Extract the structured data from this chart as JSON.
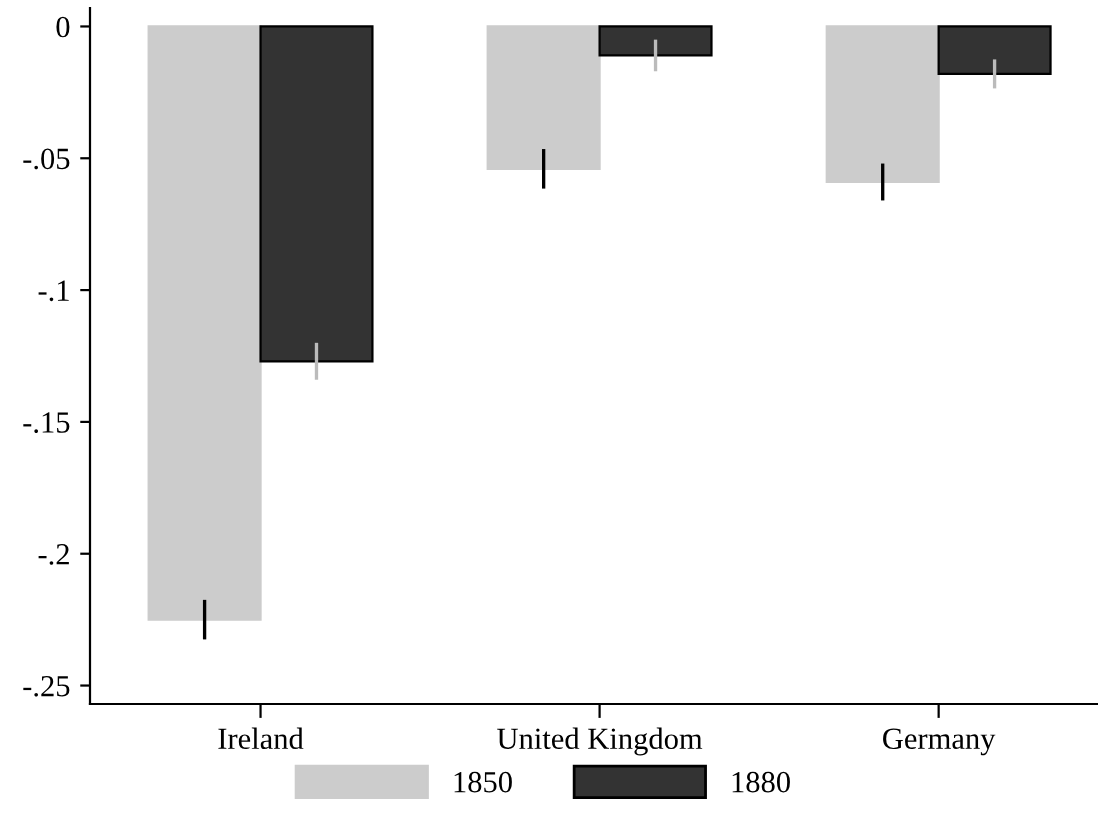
{
  "chart_data": {
    "type": "bar",
    "categories": [
      "Ireland",
      "United Kingdom",
      "Germany"
    ],
    "series": [
      {
        "name": "1850",
        "color": "#cccccc",
        "values": [
          -0.225,
          -0.054,
          -0.059
        ],
        "errors": [
          0.0075,
          0.0075,
          0.007
        ]
      },
      {
        "name": "1880",
        "color": "#333333",
        "values": [
          -0.127,
          -0.011,
          -0.018
        ],
        "errors": [
          0.007,
          0.006,
          0.0055
        ]
      }
    ],
    "ylim": [
      -0.257,
      0.007
    ],
    "yticks": [
      {
        "value": 0,
        "label": "0"
      },
      {
        "value": -0.05,
        "label": "-.05"
      },
      {
        "value": -0.1,
        "label": "-.1"
      },
      {
        "value": -0.15,
        "label": "-.15"
      },
      {
        "value": -0.2,
        "label": "-.2"
      },
      {
        "value": -0.25,
        "label": "-.25"
      }
    ],
    "grid": false,
    "legend": "bottom"
  }
}
